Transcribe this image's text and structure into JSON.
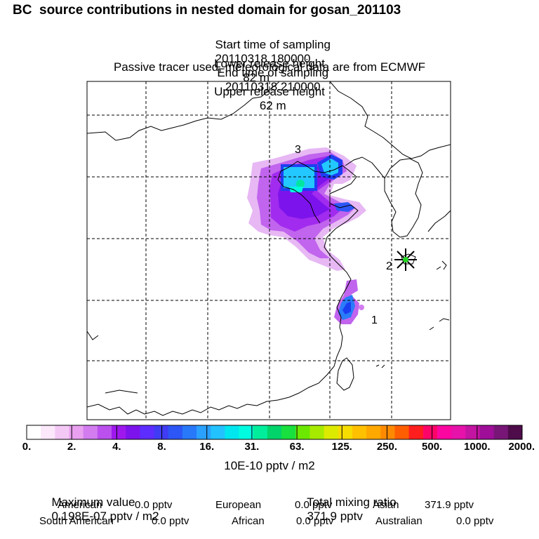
{
  "header": {
    "title": "BC  source contributions in nested domain for gosan_201103",
    "start_label": "Start time of sampling",
    "start_value": "20110318.180000",
    "end_label": "End time of sampling",
    "end_value": "20110318.210000",
    "lower_label": "Lower release height",
    "lower_value": "82 m",
    "upper_label": "Upper release height",
    "upper_value": "62 m",
    "note": "Passive tracer used, meteorological data are from ECMWF"
  },
  "map": {
    "source_labels": [
      "1",
      "2",
      "3"
    ]
  },
  "colorbar": {
    "tick_labels": [
      "0.",
      "2.",
      "4.",
      "8.",
      "16.",
      "31.",
      "63.",
      "125.",
      "250.",
      "500.",
      "1000.",
      "2000."
    ],
    "colors": [
      "#ffffff",
      "#fbe8fb",
      "#f3c8f5",
      "#e9a0f0",
      "#d27cf0",
      "#bb50ee",
      "#9e18ee",
      "#7d13ec",
      "#5d2cff",
      "#3f3cf4",
      "#2d56f6",
      "#2878fa",
      "#2aa0ff",
      "#22c2ff",
      "#00e6ee",
      "#00fce0",
      "#00ee9c",
      "#00d46a",
      "#18e03e",
      "#6ce800",
      "#a6ea00",
      "#dcea00",
      "#f6dc00",
      "#ffc000",
      "#ffa800",
      "#ff8a00",
      "#ff5e00",
      "#ff1e1e",
      "#ff0468",
      "#fb06a0",
      "#e612aa",
      "#c414a2",
      "#9e0e98",
      "#781678",
      "#4e0c4a"
    ],
    "units": "10E-10 pptv / m2"
  },
  "stats": {
    "max_label": "Maximum value",
    "max_value": "0.198E-07 pptv / m2",
    "total_label": "Total mixing ratio",
    "total_value": "371.9 pptv",
    "american_label": "American",
    "american_value": "0.0 pptv",
    "european_label": "European",
    "european_value": "0.0 pptv",
    "asian_label": "Asian",
    "asian_value": "371.9 pptv",
    "south_american_label": "South American",
    "south_american_value": "0.0 pptv",
    "african_label": "African",
    "african_value": "0.0 pptv",
    "australian_label": "Australian",
    "australian_value": "0.0 pptv"
  }
}
